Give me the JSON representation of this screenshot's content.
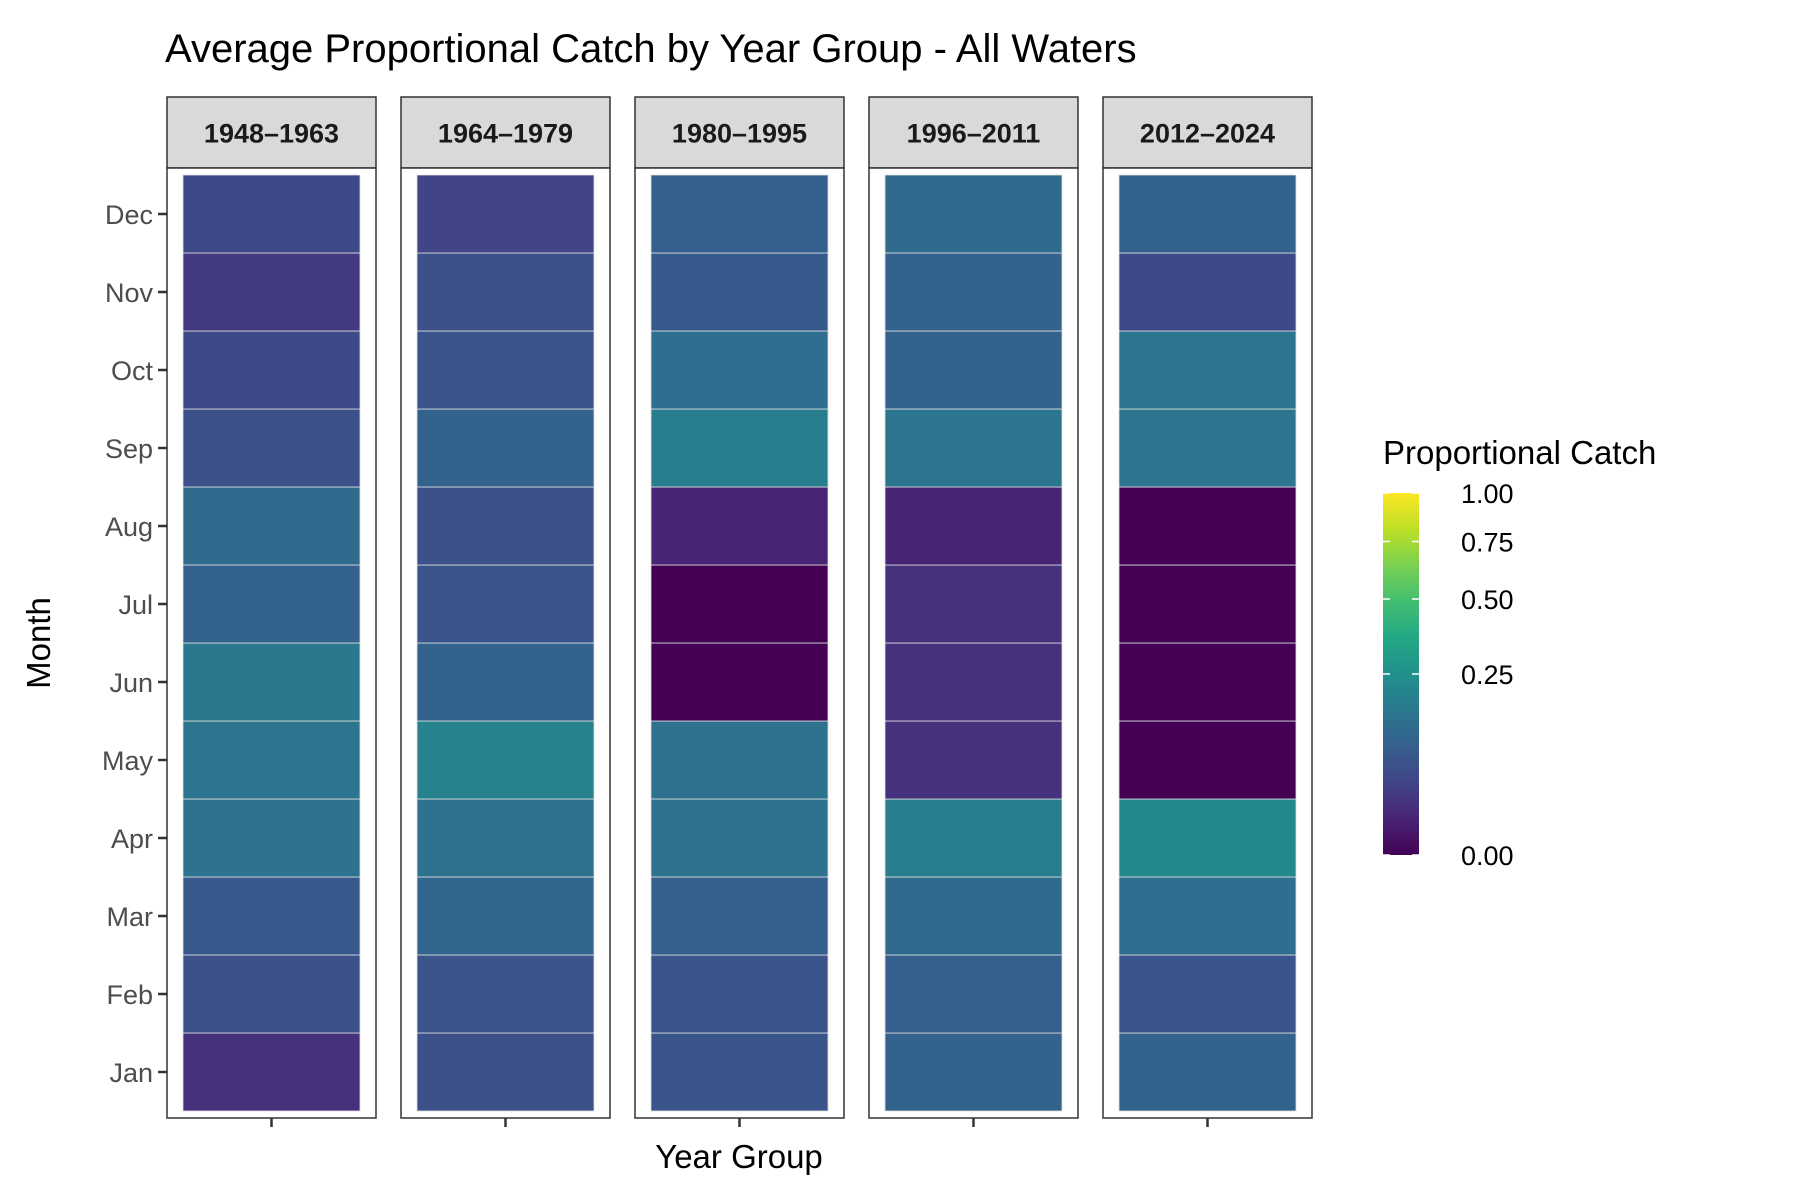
{
  "chart_data": {
    "type": "heatmap",
    "title": "Average Proportional Catch by Year Group - All Waters",
    "xlabel": "Year Group",
    "ylabel": "Month",
    "facets": [
      "1948–1963",
      "1964–1979",
      "1980–1995",
      "1996–2011",
      "2012–2024"
    ],
    "months": [
      "Jan",
      "Feb",
      "Mar",
      "Apr",
      "May",
      "Jun",
      "Jul",
      "Aug",
      "Sep",
      "Oct",
      "Nov",
      "Dec"
    ],
    "color_scale": "viridis",
    "color_transform": "sqrt",
    "color_limits": [
      0,
      1
    ],
    "legend": {
      "title": "Proportional Catch",
      "placement": "right",
      "ticks": [
        0.0,
        0.25,
        0.5,
        0.75,
        1.0
      ],
      "tick_labels": [
        "0.00",
        "0.25",
        "0.50",
        "0.75",
        "1.00"
      ]
    },
    "values": [
      [
        0.02,
        0.06,
        0.08,
        0.14,
        0.15,
        0.16,
        0.1,
        0.12,
        0.06,
        0.05,
        0.03,
        0.05
      ],
      [
        0.06,
        0.07,
        0.11,
        0.14,
        0.2,
        0.1,
        0.07,
        0.06,
        0.1,
        0.07,
        0.06,
        0.04
      ],
      [
        0.07,
        0.07,
        0.09,
        0.14,
        0.14,
        0.0,
        0.0,
        0.01,
        0.18,
        0.13,
        0.08,
        0.09
      ],
      [
        0.1,
        0.09,
        0.12,
        0.18,
        0.02,
        0.02,
        0.02,
        0.01,
        0.15,
        0.1,
        0.1,
        0.12
      ],
      [
        0.1,
        0.07,
        0.13,
        0.22,
        0.0,
        0.0,
        0.0,
        0.0,
        0.15,
        0.15,
        0.05,
        0.1
      ]
    ]
  }
}
